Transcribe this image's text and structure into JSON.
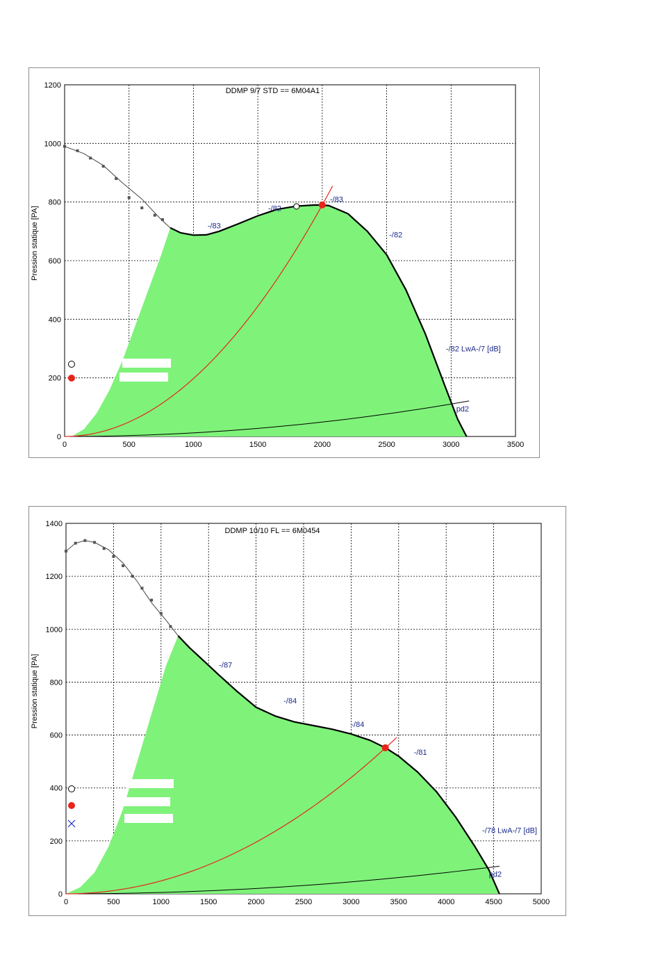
{
  "chart_data": [
    {
      "type": "line",
      "title": "DDMP 9/7 STD == 6M04A1",
      "ylabel": "Pression statique [PA]",
      "xlabel": "",
      "xlim": [
        0,
        3500
      ],
      "ylim": [
        0,
        1200
      ],
      "xticks": [
        "0",
        "500",
        "1000",
        "1500",
        "2000",
        "2500",
        "3000",
        "3500"
      ],
      "yticks": [
        "0",
        "200",
        "400",
        "600",
        "800",
        "1000",
        "1200"
      ],
      "grid": true,
      "colors": {
        "fill": "#7ff27a",
        "system_curve": "#e8241b",
        "fan_curve": "#000000",
        "dots": "#555555",
        "annotation": "#1a2a8c",
        "marker": "#e8241b"
      },
      "fan_curve": {
        "x": [
          0,
          150,
          300,
          450,
          600,
          750,
          820,
          900,
          1000,
          1100,
          1200,
          1350,
          1500,
          1650,
          1800,
          1950,
          2050,
          2200,
          2350,
          2500,
          2650,
          2800,
          2950,
          3050,
          3120
        ],
        "y": [
          990,
          965,
          925,
          865,
          810,
          740,
          712,
          695,
          687,
          688,
          700,
          726,
          753,
          775,
          786,
          790,
          788,
          760,
          700,
          620,
          500,
          350,
          175,
          60,
          0
        ]
      },
      "stall_dots": {
        "x": [
          0,
          100,
          200,
          300,
          400,
          500,
          600,
          700,
          760
        ],
        "y": [
          990,
          975,
          950,
          922,
          880,
          815,
          780,
          755,
          740
        ]
      },
      "fill_left_edge": {
        "x": [
          55,
          150,
          250,
          350,
          450,
          550,
          650,
          750,
          820
        ],
        "y": [
          0,
          25,
          80,
          160,
          260,
          380,
          500,
          620,
          712
        ]
      },
      "system_curve": {
        "k": 0.0001975,
        "x_end": 2080
      },
      "dynamic_curve": {
        "label": "pd2",
        "k": 1.23e-05,
        "x_end": 3140
      },
      "operating_point": {
        "x": 2000,
        "y": 790
      },
      "open_point": {
        "x": 1800,
        "y": 785
      },
      "annotations": [
        {
          "text": "-/83",
          "x": 1110,
          "y": 710
        },
        {
          "text": "-/82",
          "x": 1580,
          "y": 770
        },
        {
          "text": "-/83",
          "x": 2060,
          "y": 800
        },
        {
          "text": "-/82",
          "x": 2520,
          "y": 680
        },
        {
          "text": "-/82  LwA-/7 [dB]",
          "x": 2960,
          "y": 290
        },
        {
          "text": "pd2",
          "x": 3040,
          "y": 85
        }
      ],
      "legend": {
        "markers": [
          "open-circle",
          "red-dot"
        ],
        "labels": [
          "",
          ""
        ]
      }
    },
    {
      "type": "line",
      "title": "DDMP 10/10 FL == 6M0454",
      "ylabel": "Pression statique [PA]",
      "xlabel": "",
      "xlim": [
        0,
        5000
      ],
      "ylim": [
        0,
        1400
      ],
      "xticks": [
        "0",
        "500",
        "1000",
        "1500",
        "2000",
        "2500",
        "3000",
        "3500",
        "4000",
        "4500",
        "5000"
      ],
      "yticks": [
        "0",
        "200",
        "400",
        "600",
        "800",
        "1000",
        "1200",
        "1400"
      ],
      "grid": true,
      "colors": {
        "fill": "#7ff27a",
        "system_curve": "#e8241b",
        "fan_curve": "#000000",
        "dots": "#555555",
        "annotation": "#1a2a8c",
        "marker": "#e8241b"
      },
      "fan_curve": {
        "x": [
          0,
          100,
          200,
          300,
          450,
          600,
          750,
          900,
          1050,
          1180,
          1300,
          1450,
          1600,
          1800,
          2000,
          2200,
          2400,
          2600,
          2800,
          3000,
          3200,
          3360,
          3500,
          3700,
          3900,
          4100,
          4300,
          4450,
          4560
        ],
        "y": [
          1295,
          1325,
          1335,
          1328,
          1300,
          1250,
          1180,
          1100,
          1035,
          975,
          930,
          880,
          830,
          765,
          705,
          672,
          650,
          636,
          622,
          604,
          580,
          552,
          520,
          460,
          385,
          290,
          180,
          90,
          0
        ]
      },
      "stall_dots": {
        "x": [
          0,
          100,
          200,
          300,
          400,
          500,
          600,
          700,
          800,
          900,
          1000,
          1100
        ],
        "y": [
          1295,
          1325,
          1335,
          1328,
          1305,
          1275,
          1240,
          1200,
          1155,
          1110,
          1060,
          1010
        ]
      },
      "fill_left_edge": {
        "x": [
          0,
          150,
          300,
          450,
          600,
          750,
          900,
          1050,
          1180
        ],
        "y": [
          0,
          25,
          80,
          180,
          320,
          500,
          680,
          860,
          975
        ]
      },
      "system_curve": {
        "k": 4.88e-05,
        "x_end": 3480
      },
      "dynamic_curve": {
        "label": "pd2",
        "k": 5.02e-06,
        "x_end": 4560
      },
      "operating_point": {
        "x": 3360,
        "y": 552
      },
      "annotations": [
        {
          "text": "-/87",
          "x": 1610,
          "y": 855
        },
        {
          "text": "-/84",
          "x": 2290,
          "y": 720
        },
        {
          "text": "-/84",
          "x": 3000,
          "y": 630
        },
        {
          "text": "-/81",
          "x": 3660,
          "y": 525
        },
        {
          "text": "-/78  LwA-/7 [dB]",
          "x": 4380,
          "y": 230
        },
        {
          "text": "pd2",
          "x": 4450,
          "y": 65
        }
      ],
      "legend": {
        "markers": [
          "open-circle",
          "red-dot",
          "blue-cross"
        ],
        "labels": [
          "",
          "",
          ""
        ]
      }
    }
  ]
}
